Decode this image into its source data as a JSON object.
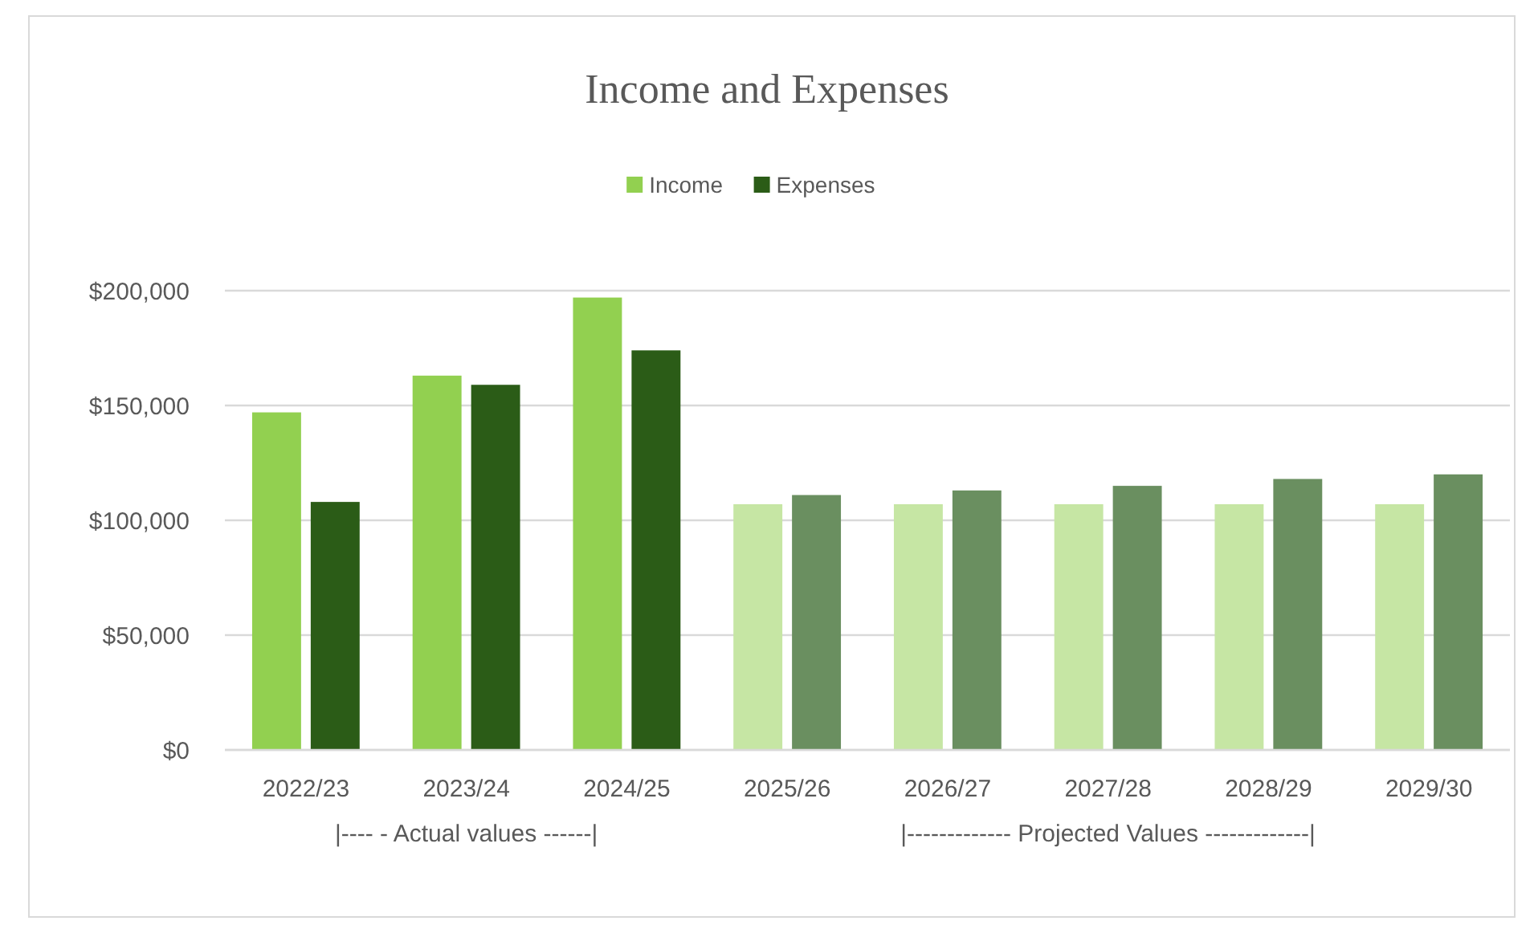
{
  "chart_data": {
    "type": "bar",
    "title": "Income and Expenses",
    "categories": [
      "2022/23",
      "2023/24",
      "2024/25",
      "2025/26",
      "2026/27",
      "2027/28",
      "2028/29",
      "2029/30"
    ],
    "series": [
      {
        "name": "Income",
        "color": "#92d050",
        "colors": [
          "#92d050",
          "#92d050",
          "#92d050",
          "#c6e6a4",
          "#c6e6a4",
          "#c6e6a4",
          "#c6e6a4",
          "#c6e6a4"
        ],
        "values": [
          147000,
          163000,
          197000,
          107000,
          107000,
          107000,
          107000,
          107000
        ]
      },
      {
        "name": "Expenses",
        "color": "#2b5c17",
        "colors": [
          "#2b5c17",
          "#2b5c17",
          "#2b5c17",
          "#6a8f60",
          "#6a8f60",
          "#6a8f60",
          "#6a8f60",
          "#6a8f60"
        ],
        "values": [
          108000,
          159000,
          174000,
          111000,
          113000,
          115000,
          118000,
          120000
        ]
      }
    ],
    "ylim": [
      0,
      200000
    ],
    "yticks": [
      {
        "value": 0,
        "label": "$0"
      },
      {
        "value": 50000,
        "label": "$50,000"
      },
      {
        "value": 100000,
        "label": "$100,000"
      },
      {
        "value": 150000,
        "label": "$150,000"
      },
      {
        "value": 200000,
        "label": "$200,000"
      }
    ],
    "grid": "y",
    "legend": "top",
    "annotations": [
      "|---- - Actual values ------|",
      "|------------- Projected Values -------------|"
    ]
  }
}
